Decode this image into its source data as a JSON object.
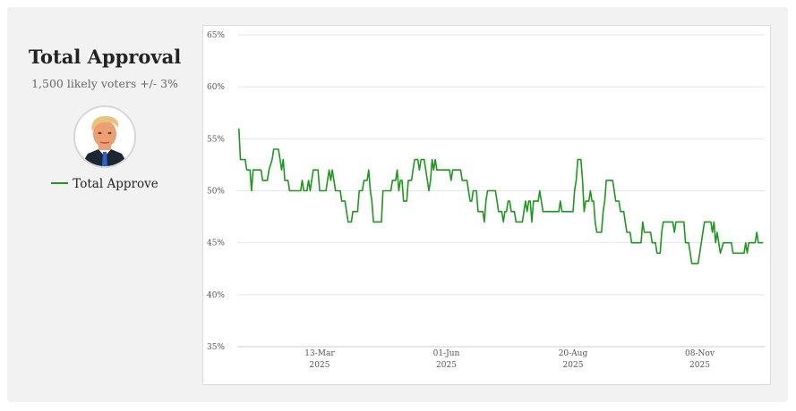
{
  "panel": {
    "title": "Total Approval",
    "subtitle": "1,500 likely voters +/- 3%",
    "avatar_icon": "person-avatar-icon"
  },
  "legend": {
    "label": "Total Approve",
    "color": "#1a9a1a"
  },
  "chart_data": {
    "type": "line",
    "title": "Total Approval",
    "xlabel": "",
    "ylabel": "",
    "ylim": [
      35,
      65
    ],
    "yticks": [
      "35%",
      "40%",
      "45%",
      "50%",
      "55%",
      "60%",
      "65%"
    ],
    "xticks": [
      {
        "date": "2025-03-13",
        "line1": "13-Mar",
        "line2": "2025"
      },
      {
        "date": "2025-06-01",
        "line1": "01-Jun",
        "line2": "2025"
      },
      {
        "date": "2025-08-20",
        "line1": "20-Aug",
        "line2": "2025"
      },
      {
        "date": "2025-11-08",
        "line1": "08-Nov",
        "line2": "2025"
      }
    ],
    "grid": true,
    "legend_position": "left",
    "series": [
      {
        "name": "Total Approve",
        "color": "#1a9a1a",
        "points": [
          [
            "2025-01-21",
            56
          ],
          [
            "2025-01-22",
            53
          ],
          [
            "2025-01-25",
            53
          ],
          [
            "2025-01-26",
            52
          ],
          [
            "2025-01-28",
            52
          ],
          [
            "2025-01-29",
            50
          ],
          [
            "2025-01-30",
            52
          ],
          [
            "2025-02-04",
            52
          ],
          [
            "2025-02-05",
            51
          ],
          [
            "2025-02-08",
            51
          ],
          [
            "2025-02-09",
            52
          ],
          [
            "2025-02-11",
            53
          ],
          [
            "2025-02-12",
            54
          ],
          [
            "2025-02-15",
            54
          ],
          [
            "2025-02-16",
            53
          ],
          [
            "2025-02-17",
            52
          ],
          [
            "2025-02-18",
            53
          ],
          [
            "2025-02-19",
            51
          ],
          [
            "2025-02-21",
            51
          ],
          [
            "2025-02-22",
            50
          ],
          [
            "2025-03-01",
            50
          ],
          [
            "2025-03-02",
            51
          ],
          [
            "2025-03-03",
            50
          ],
          [
            "2025-03-05",
            50
          ],
          [
            "2025-03-06",
            51
          ],
          [
            "2025-03-07",
            50
          ],
          [
            "2025-03-08",
            51
          ],
          [
            "2025-03-09",
            52
          ],
          [
            "2025-03-12",
            52
          ],
          [
            "2025-03-13",
            50
          ],
          [
            "2025-03-17",
            50
          ],
          [
            "2025-03-18",
            51
          ],
          [
            "2025-03-19",
            52
          ],
          [
            "2025-03-20",
            51
          ],
          [
            "2025-03-21",
            52
          ],
          [
            "2025-03-22",
            51
          ],
          [
            "2025-03-23",
            50
          ],
          [
            "2025-03-26",
            50
          ],
          [
            "2025-03-27",
            49
          ],
          [
            "2025-03-29",
            49
          ],
          [
            "2025-03-31",
            47
          ],
          [
            "2025-04-02",
            47
          ],
          [
            "2025-04-03",
            48
          ],
          [
            "2025-04-06",
            48
          ],
          [
            "2025-04-07",
            50
          ],
          [
            "2025-04-09",
            50
          ],
          [
            "2025-04-10",
            51
          ],
          [
            "2025-04-12",
            51
          ],
          [
            "2025-04-13",
            52
          ],
          [
            "2025-04-14",
            50
          ],
          [
            "2025-04-15",
            49
          ],
          [
            "2025-04-16",
            47
          ],
          [
            "2025-04-21",
            47
          ],
          [
            "2025-04-22",
            50
          ],
          [
            "2025-04-27",
            50
          ],
          [
            "2025-04-28",
            51
          ],
          [
            "2025-04-30",
            51
          ],
          [
            "2025-05-01",
            52
          ],
          [
            "2025-05-02",
            50
          ],
          [
            "2025-05-03",
            51
          ],
          [
            "2025-05-04",
            51
          ],
          [
            "2025-05-05",
            49
          ],
          [
            "2025-05-07",
            49
          ],
          [
            "2025-05-08",
            51
          ],
          [
            "2025-05-10",
            51
          ],
          [
            "2025-05-11",
            52
          ],
          [
            "2025-05-12",
            53
          ],
          [
            "2025-05-14",
            53
          ],
          [
            "2025-05-15",
            52
          ],
          [
            "2025-05-16",
            53
          ],
          [
            "2025-05-18",
            53
          ],
          [
            "2025-05-19",
            52
          ],
          [
            "2025-05-20",
            51
          ],
          [
            "2025-05-21",
            50
          ],
          [
            "2025-05-22",
            51
          ],
          [
            "2025-05-23",
            53
          ],
          [
            "2025-05-24",
            52
          ],
          [
            "2025-05-25",
            53
          ],
          [
            "2025-05-26",
            52
          ],
          [
            "2025-06-03",
            52
          ],
          [
            "2025-06-04",
            51
          ],
          [
            "2025-06-05",
            52
          ],
          [
            "2025-06-10",
            52
          ],
          [
            "2025-06-11",
            51
          ],
          [
            "2025-06-14",
            51
          ],
          [
            "2025-06-16",
            49
          ],
          [
            "2025-06-17",
            49
          ],
          [
            "2025-06-18",
            50
          ],
          [
            "2025-06-20",
            50
          ],
          [
            "2025-06-21",
            48
          ],
          [
            "2025-06-24",
            48
          ],
          [
            "2025-06-25",
            47
          ],
          [
            "2025-06-26",
            49
          ],
          [
            "2025-06-27",
            50
          ],
          [
            "2025-07-02",
            50
          ],
          [
            "2025-07-03",
            49
          ],
          [
            "2025-07-04",
            48
          ],
          [
            "2025-07-06",
            48
          ],
          [
            "2025-07-07",
            47
          ],
          [
            "2025-07-08",
            48
          ],
          [
            "2025-07-09",
            48
          ],
          [
            "2025-07-10",
            49
          ],
          [
            "2025-07-11",
            49
          ],
          [
            "2025-07-12",
            48
          ],
          [
            "2025-07-14",
            48
          ],
          [
            "2025-07-15",
            47
          ],
          [
            "2025-07-19",
            47
          ],
          [
            "2025-07-20",
            48
          ],
          [
            "2025-07-21",
            49
          ],
          [
            "2025-07-22",
            48
          ],
          [
            "2025-07-23",
            49
          ],
          [
            "2025-07-24",
            49
          ],
          [
            "2025-07-25",
            47
          ],
          [
            "2025-07-26",
            49
          ],
          [
            "2025-07-29",
            49
          ],
          [
            "2025-07-30",
            50
          ],
          [
            "2025-07-31",
            49
          ],
          [
            "2025-08-01",
            48
          ],
          [
            "2025-08-11",
            48
          ],
          [
            "2025-08-12",
            49
          ],
          [
            "2025-08-13",
            48
          ],
          [
            "2025-08-20",
            48
          ],
          [
            "2025-08-21",
            50
          ],
          [
            "2025-08-22",
            51
          ],
          [
            "2025-08-23",
            53
          ],
          [
            "2025-08-25",
            53
          ],
          [
            "2025-08-26",
            51
          ],
          [
            "2025-08-27",
            48
          ],
          [
            "2025-08-28",
            49
          ],
          [
            "2025-08-30",
            49
          ],
          [
            "2025-08-31",
            50
          ],
          [
            "2025-09-01",
            49
          ],
          [
            "2025-09-02",
            49
          ],
          [
            "2025-09-03",
            47
          ],
          [
            "2025-09-04",
            46
          ],
          [
            "2025-09-07",
            46
          ],
          [
            "2025-09-08",
            48
          ],
          [
            "2025-09-09",
            49
          ],
          [
            "2025-09-10",
            51
          ],
          [
            "2025-09-14",
            51
          ],
          [
            "2025-09-15",
            50
          ],
          [
            "2025-09-16",
            49
          ],
          [
            "2025-09-18",
            49
          ],
          [
            "2025-09-19",
            48
          ],
          [
            "2025-09-21",
            48
          ],
          [
            "2025-09-22",
            47
          ],
          [
            "2025-09-23",
            46
          ],
          [
            "2025-09-25",
            46
          ],
          [
            "2025-09-26",
            45
          ],
          [
            "2025-10-02",
            45
          ],
          [
            "2025-10-03",
            47
          ],
          [
            "2025-10-04",
            46
          ],
          [
            "2025-10-08",
            46
          ],
          [
            "2025-10-09",
            45
          ],
          [
            "2025-10-11",
            45
          ],
          [
            "2025-10-12",
            44
          ],
          [
            "2025-10-14",
            44
          ],
          [
            "2025-10-15",
            46
          ],
          [
            "2025-10-16",
            47
          ],
          [
            "2025-10-22",
            47
          ],
          [
            "2025-10-23",
            46
          ],
          [
            "2025-10-24",
            47
          ],
          [
            "2025-10-29",
            47
          ],
          [
            "2025-10-30",
            45
          ],
          [
            "2025-11-01",
            45
          ],
          [
            "2025-11-02",
            44
          ],
          [
            "2025-11-03",
            43
          ],
          [
            "2025-11-07",
            43
          ],
          [
            "2025-11-08",
            44
          ],
          [
            "2025-11-10",
            46
          ],
          [
            "2025-11-11",
            47
          ],
          [
            "2025-11-15",
            47
          ],
          [
            "2025-11-16",
            46
          ],
          [
            "2025-11-17",
            47
          ],
          [
            "2025-11-18",
            45
          ],
          [
            "2025-11-19",
            46
          ],
          [
            "2025-11-20",
            45
          ],
          [
            "2025-11-21",
            44
          ],
          [
            "2025-11-23",
            45
          ],
          [
            "2025-11-28",
            45
          ],
          [
            "2025-11-29",
            44
          ],
          [
            "2025-12-06",
            44
          ],
          [
            "2025-12-07",
            45
          ],
          [
            "2025-12-08",
            44
          ],
          [
            "2025-12-09",
            45
          ],
          [
            "2025-12-13",
            45
          ],
          [
            "2025-12-14",
            46
          ],
          [
            "2025-12-15",
            45
          ],
          [
            "2025-12-18",
            45
          ]
        ]
      }
    ]
  }
}
